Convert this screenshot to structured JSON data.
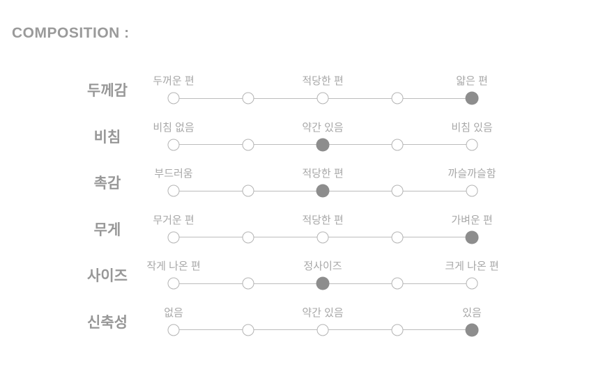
{
  "title": "COMPOSITION :",
  "composition": {
    "scale_points": 5,
    "rows": [
      {
        "label": "두께감",
        "scale_labels": [
          "두꺼운 편",
          "적당한 편",
          "얇은 편"
        ],
        "selected": 5
      },
      {
        "label": "비침",
        "scale_labels": [
          "비침 없음",
          "약간 있음",
          "비침 있음"
        ],
        "selected": 3
      },
      {
        "label": "촉감",
        "scale_labels": [
          "부드러움",
          "적당한 편",
          "까슬까슬함"
        ],
        "selected": 3
      },
      {
        "label": "무게",
        "scale_labels": [
          "무거운 편",
          "적당한 편",
          "가벼운 편"
        ],
        "selected": 5
      },
      {
        "label": "사이즈",
        "scale_labels": [
          "작게 나온 편",
          "정사이즈",
          "크게 나온 편"
        ],
        "selected": 3
      },
      {
        "label": "신축성",
        "scale_labels": [
          "없음",
          "약간 있음",
          "있음"
        ],
        "selected": 5
      }
    ]
  },
  "colors": {
    "background": "#ffffff",
    "title": "#9a9a9a",
    "row_label": "#979797",
    "scale_label": "#a7a7a7",
    "line": "#bcbcbc",
    "dot_border": "#b3b3b3",
    "dot_selected": "#8d8d8d"
  }
}
